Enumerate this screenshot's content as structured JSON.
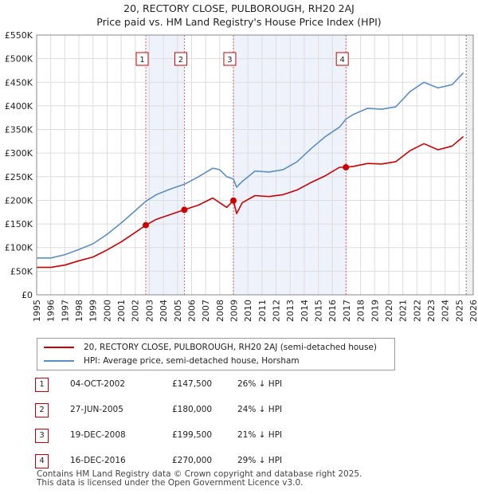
{
  "chart_data": {
    "type": "line",
    "title": "20, RECTORY CLOSE, PULBOROUGH, RH20 2AJ",
    "subtitle": "Price paid vs. HM Land Registry's House Price Index (HPI)",
    "xlim": [
      1995,
      2026
    ],
    "ylim": [
      0,
      550000
    ],
    "yticks": [
      0,
      50000,
      100000,
      150000,
      200000,
      250000,
      300000,
      350000,
      400000,
      450000,
      500000,
      550000
    ],
    "ytick_labels": [
      "£0",
      "£50K",
      "£100K",
      "£150K",
      "£200K",
      "£250K",
      "£300K",
      "£350K",
      "£400K",
      "£450K",
      "£500K",
      "£550K"
    ],
    "xticks": [
      1995,
      1996,
      1997,
      1998,
      1999,
      2000,
      2001,
      2002,
      2003,
      2004,
      2005,
      2006,
      2007,
      2008,
      2009,
      2010,
      2011,
      2012,
      2013,
      2014,
      2015,
      2016,
      2017,
      2018,
      2019,
      2020,
      2021,
      2022,
      2023,
      2024,
      2025,
      2026
    ],
    "grid": true,
    "series": [
      {
        "name": "20, RECTORY CLOSE, PULBOROUGH, RH20 2AJ (semi-detached house)",
        "color": "#cc0000",
        "points": [
          [
            1995.0,
            58000
          ],
          [
            1996.0,
            58000
          ],
          [
            1997.0,
            63000
          ],
          [
            1998.0,
            72000
          ],
          [
            1999.0,
            80000
          ],
          [
            2000.0,
            95000
          ],
          [
            2001.0,
            112000
          ],
          [
            2002.0,
            132000
          ],
          [
            2002.75,
            147500
          ],
          [
            2003.5,
            160000
          ],
          [
            2004.5,
            170000
          ],
          [
            2005.49,
            180000
          ],
          [
            2006.5,
            190000
          ],
          [
            2007.5,
            205000
          ],
          [
            2008.0,
            195000
          ],
          [
            2008.5,
            185000
          ],
          [
            2008.97,
            199500
          ],
          [
            2009.2,
            172000
          ],
          [
            2009.6,
            195000
          ],
          [
            2010.5,
            210000
          ],
          [
            2011.5,
            208000
          ],
          [
            2012.5,
            212000
          ],
          [
            2013.5,
            222000
          ],
          [
            2014.5,
            238000
          ],
          [
            2015.5,
            252000
          ],
          [
            2016.5,
            270000
          ],
          [
            2016.96,
            270000
          ],
          [
            2017.5,
            272000
          ],
          [
            2018.5,
            278000
          ],
          [
            2019.5,
            277000
          ],
          [
            2020.5,
            282000
          ],
          [
            2021.5,
            305000
          ],
          [
            2022.5,
            320000
          ],
          [
            2023.5,
            307000
          ],
          [
            2024.5,
            315000
          ],
          [
            2025.3,
            335000
          ]
        ]
      },
      {
        "name": "HPI: Average price, semi-detached house, Horsham",
        "color": "#5b8ec7",
        "points": [
          [
            1995.0,
            78000
          ],
          [
            1996.0,
            78000
          ],
          [
            1997.0,
            85000
          ],
          [
            1998.0,
            96000
          ],
          [
            1999.0,
            108000
          ],
          [
            2000.0,
            128000
          ],
          [
            2001.0,
            152000
          ],
          [
            2002.0,
            178000
          ],
          [
            2002.75,
            198000
          ],
          [
            2003.5,
            212000
          ],
          [
            2004.5,
            224000
          ],
          [
            2005.49,
            234000
          ],
          [
            2006.5,
            250000
          ],
          [
            2007.5,
            268000
          ],
          [
            2008.0,
            265000
          ],
          [
            2008.5,
            250000
          ],
          [
            2008.97,
            245000
          ],
          [
            2009.2,
            228000
          ],
          [
            2009.6,
            240000
          ],
          [
            2010.5,
            262000
          ],
          [
            2011.5,
            260000
          ],
          [
            2012.5,
            265000
          ],
          [
            2013.5,
            282000
          ],
          [
            2014.5,
            310000
          ],
          [
            2015.5,
            335000
          ],
          [
            2016.5,
            355000
          ],
          [
            2016.96,
            372000
          ],
          [
            2017.5,
            382000
          ],
          [
            2018.5,
            395000
          ],
          [
            2019.5,
            393000
          ],
          [
            2020.5,
            398000
          ],
          [
            2021.5,
            430000
          ],
          [
            2022.5,
            450000
          ],
          [
            2023.5,
            438000
          ],
          [
            2024.5,
            445000
          ],
          [
            2025.3,
            470000
          ]
        ]
      }
    ],
    "sales": [
      {
        "label": "1",
        "x": 2002.75,
        "price": 147500,
        "date": "04-OCT-2002",
        "price_text": "£147,500",
        "hpi_text": "26% ↓ HPI"
      },
      {
        "label": "2",
        "x": 2005.49,
        "price": 180000,
        "date": "27-JUN-2005",
        "price_text": "£180,000",
        "hpi_text": "24% ↓ HPI"
      },
      {
        "label": "3",
        "x": 2008.97,
        "price": 199500,
        "date": "19-DEC-2008",
        "price_text": "£199,500",
        "hpi_text": "21% ↓ HPI"
      },
      {
        "label": "4",
        "x": 2016.96,
        "price": 270000,
        "date": "16-DEC-2016",
        "price_text": "£270,000",
        "hpi_text": "29% ↓ HPI"
      }
    ],
    "shaded_ranges": [
      [
        2002.75,
        2005.49
      ],
      [
        2008.97,
        2016.96
      ]
    ],
    "forecast_start": 2025.5
  },
  "footer": {
    "line1": "Contains HM Land Registry data © Crown copyright and database right 2025.",
    "line2": "This data is licensed under the Open Government Licence v3.0."
  }
}
